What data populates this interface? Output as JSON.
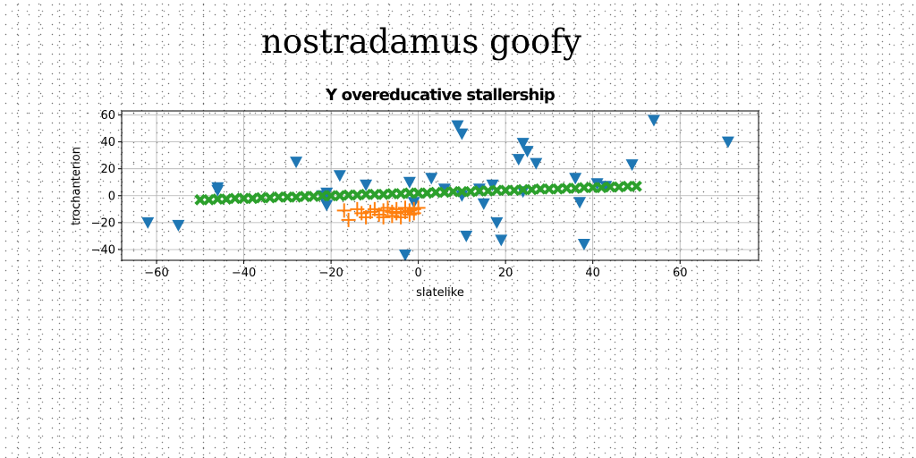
{
  "page": {
    "title": "nostradamus goofy"
  },
  "chart_data": {
    "type": "scatter",
    "title": "Y overeducative stallership",
    "xlabel": "slatelike",
    "ylabel": "trochanterion",
    "xlim": [
      -68,
      78
    ],
    "ylim": [
      -48,
      63
    ],
    "xticks": [
      -60,
      -40,
      -20,
      0,
      20,
      40,
      60
    ],
    "yticks": [
      -40,
      -20,
      0,
      20,
      40,
      60
    ],
    "grid": true,
    "series": [
      {
        "marker": "triangle-down",
        "color": "#1f77b4",
        "points": [
          [
            -62,
            -20
          ],
          [
            -55,
            -22
          ],
          [
            -46,
            6
          ],
          [
            -46,
            4
          ],
          [
            -28,
            25
          ],
          [
            -22,
            0
          ],
          [
            -21,
            2
          ],
          [
            -21,
            -7
          ],
          [
            -18,
            15
          ],
          [
            -12,
            8
          ],
          [
            -3,
            -44
          ],
          [
            -2,
            10
          ],
          [
            -1,
            -5
          ],
          [
            3,
            13
          ],
          [
            6,
            5
          ],
          [
            9,
            52
          ],
          [
            10,
            46
          ],
          [
            10,
            0
          ],
          [
            11,
            -30
          ],
          [
            14,
            5
          ],
          [
            15,
            -6
          ],
          [
            17,
            8
          ],
          [
            18,
            -20
          ],
          [
            19,
            -33
          ],
          [
            23,
            27
          ],
          [
            24,
            3
          ],
          [
            24,
            39
          ],
          [
            25,
            33
          ],
          [
            27,
            24
          ],
          [
            36,
            13
          ],
          [
            37,
            -5
          ],
          [
            38,
            -36
          ],
          [
            41,
            9
          ],
          [
            43,
            7
          ],
          [
            49,
            23
          ],
          [
            54,
            56
          ],
          [
            71,
            40
          ]
        ]
      },
      {
        "marker": "plus",
        "color": "#ff7f0e",
        "points": [
          [
            -17,
            -11
          ],
          [
            -16,
            -18
          ],
          [
            -14,
            -10
          ],
          [
            -13,
            -13
          ],
          [
            -12,
            -16
          ],
          [
            -11,
            -12
          ],
          [
            -10,
            -10
          ],
          [
            -9,
            -14
          ],
          [
            -8,
            -11
          ],
          [
            -8,
            -16
          ],
          [
            -7,
            -9
          ],
          [
            -6,
            -12
          ],
          [
            -6,
            -15
          ],
          [
            -5,
            -10
          ],
          [
            -5,
            -13
          ],
          [
            -4,
            -16
          ],
          [
            -3,
            -12
          ],
          [
            -3,
            -9
          ],
          [
            -2,
            -14
          ],
          [
            -2,
            -11
          ],
          [
            -1,
            -10
          ],
          [
            -1,
            -13
          ],
          [
            0,
            -9
          ]
        ]
      },
      {
        "marker": "x",
        "color": "#2ca02c",
        "points": [
          [
            -50,
            -3
          ],
          [
            -48,
            -3
          ],
          [
            -46,
            -2.5
          ],
          [
            -44,
            -2.5
          ],
          [
            -42,
            -2
          ],
          [
            -40,
            -2
          ],
          [
            -38,
            -2
          ],
          [
            -36,
            -1.5
          ],
          [
            -34,
            -1.5
          ],
          [
            -32,
            -1
          ],
          [
            -30,
            -1
          ],
          [
            -28,
            -1
          ],
          [
            -26,
            -0.5
          ],
          [
            -24,
            -0.5
          ],
          [
            -22,
            0
          ],
          [
            -20,
            0
          ],
          [
            -18,
            0
          ],
          [
            -16,
            0.5
          ],
          [
            -14,
            0.5
          ],
          [
            -12,
            1
          ],
          [
            -10,
            1
          ],
          [
            -8,
            1
          ],
          [
            -6,
            1.5
          ],
          [
            -4,
            1.5
          ],
          [
            -2,
            2
          ],
          [
            0,
            2
          ],
          [
            2,
            2
          ],
          [
            4,
            2.5
          ],
          [
            6,
            2.5
          ],
          [
            8,
            3
          ],
          [
            10,
            3
          ],
          [
            12,
            3
          ],
          [
            14,
            3.5
          ],
          [
            16,
            3.5
          ],
          [
            18,
            4
          ],
          [
            20,
            4
          ],
          [
            22,
            4
          ],
          [
            24,
            4.5
          ],
          [
            26,
            4.5
          ],
          [
            28,
            5
          ],
          [
            30,
            5
          ],
          [
            32,
            5
          ],
          [
            34,
            5.5
          ],
          [
            36,
            5.5
          ],
          [
            38,
            6
          ],
          [
            40,
            6
          ],
          [
            42,
            6
          ],
          [
            44,
            6.5
          ],
          [
            46,
            6.5
          ],
          [
            48,
            7
          ],
          [
            50,
            7
          ]
        ]
      }
    ]
  }
}
